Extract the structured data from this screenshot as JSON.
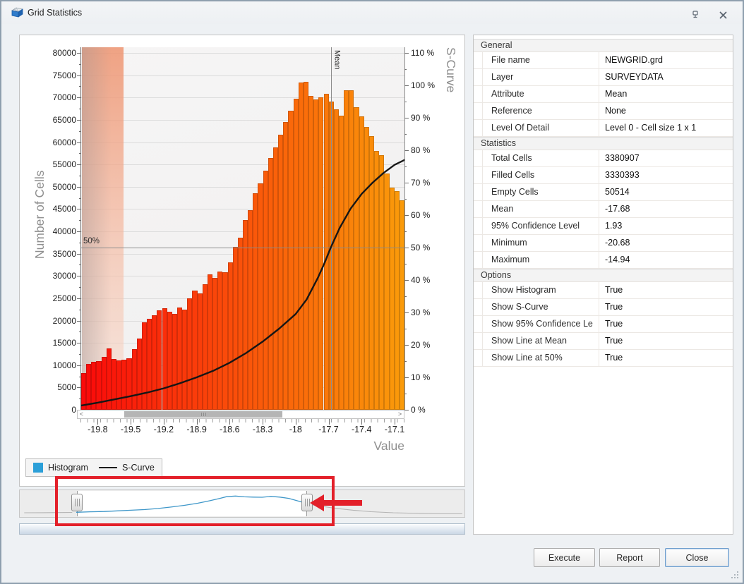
{
  "window": {
    "title": "Grid Statistics"
  },
  "chart_data": {
    "type": "bar",
    "title": "",
    "xlabel": "Value",
    "ylabel_left": "Number of Cells",
    "ylabel_right": "S-Curve",
    "x_range": [
      -19.95,
      -17.01
    ],
    "ylim_left": [
      0,
      80000
    ],
    "ylim_right_pct": [
      0,
      110
    ],
    "grid": "horizontal",
    "x_ticks": [
      "-19.8",
      "-19.5",
      "-19.2",
      "-18.9",
      "-18.6",
      "-18.3",
      "-18",
      "-17.7",
      "-17.4",
      "-17.1"
    ],
    "y_left_tick_step": 5000,
    "y_right_tick_step_pct": 10,
    "histogram": {
      "name": "Histogram",
      "bin_start": -19.95,
      "bin_count": 64,
      "values": [
        8200,
        10300,
        10800,
        10900,
        11800,
        13800,
        11400,
        11000,
        11300,
        11500,
        13600,
        16000,
        19600,
        20400,
        21200,
        22300,
        22800,
        22000,
        21500,
        23000,
        22400,
        25000,
        26800,
        26100,
        28200,
        30400,
        29600,
        31000,
        30800,
        33000,
        36500,
        38600,
        42600,
        44800,
        48600,
        50700,
        53600,
        56400,
        58800,
        61600,
        64500,
        67000,
        69700,
        73300,
        73500,
        70400,
        69600,
        70000,
        70800,
        69100,
        67400,
        66000,
        71700,
        71600,
        67900,
        65800,
        63400,
        61300,
        58100,
        57100,
        53000,
        49800,
        49000,
        47000
      ]
    },
    "s_curve": {
      "name": "S-Curve",
      "points_value_pct": [
        [
          -19.95,
          1.3
        ],
        [
          -19.8,
          2.2
        ],
        [
          -19.65,
          3.2
        ],
        [
          -19.5,
          4.2
        ],
        [
          -19.35,
          5.3
        ],
        [
          -19.2,
          6.6
        ],
        [
          -19.05,
          8.2
        ],
        [
          -18.9,
          10
        ],
        [
          -18.75,
          12
        ],
        [
          -18.6,
          14.5
        ],
        [
          -18.45,
          17.5
        ],
        [
          -18.3,
          21
        ],
        [
          -18.15,
          25
        ],
        [
          -18.0,
          29.5
        ],
        [
          -17.9,
          34
        ],
        [
          -17.8,
          40.5
        ],
        [
          -17.74,
          45
        ],
        [
          -17.68,
          50
        ],
        [
          -17.6,
          56
        ],
        [
          -17.5,
          62
        ],
        [
          -17.4,
          66.5
        ],
        [
          -17.3,
          70
        ],
        [
          -17.2,
          73
        ],
        [
          -17.1,
          75.5
        ],
        [
          -17.01,
          77
        ]
      ]
    },
    "annotations": {
      "mean_line": {
        "x": -17.68,
        "label": "Mean"
      },
      "fifty_line": {
        "pct": 50,
        "label": "50%"
      },
      "shaded_band": {
        "x_start": -19.95,
        "x_end": -19.57
      }
    },
    "legend": [
      {
        "label": "Histogram",
        "swatch": "square",
        "color": "#2b9fd8"
      },
      {
        "label": "S-Curve",
        "swatch": "line",
        "color": "#1a1a1a"
      }
    ],
    "scrollbar": {
      "thumb_start_frac": 0.125,
      "thumb_end_frac": 0.635
    }
  },
  "range_selector": {
    "selected_range_fraction": [
      0.127,
      0.645
    ],
    "profile_left_gray": [
      [
        0.01,
        0.1
      ],
      [
        0.05,
        0.105
      ],
      [
        0.09,
        0.11
      ],
      [
        0.118,
        0.118
      ]
    ],
    "profile_selected_blue": [
      [
        0.127,
        0.125
      ],
      [
        0.16,
        0.145
      ],
      [
        0.19,
        0.16
      ],
      [
        0.22,
        0.19
      ],
      [
        0.25,
        0.22
      ],
      [
        0.28,
        0.25
      ],
      [
        0.31,
        0.3
      ],
      [
        0.34,
        0.37
      ],
      [
        0.37,
        0.45
      ],
      [
        0.4,
        0.55
      ],
      [
        0.425,
        0.66
      ],
      [
        0.45,
        0.78
      ],
      [
        0.465,
        0.86
      ],
      [
        0.485,
        0.89
      ],
      [
        0.505,
        0.855
      ],
      [
        0.525,
        0.84
      ],
      [
        0.545,
        0.835
      ],
      [
        0.565,
        0.875
      ],
      [
        0.585,
        0.84
      ],
      [
        0.605,
        0.78
      ],
      [
        0.622,
        0.68
      ],
      [
        0.635,
        0.6
      ],
      [
        0.645,
        0.54
      ]
    ],
    "profile_right_gray": [
      [
        0.655,
        0.48
      ],
      [
        0.68,
        0.4
      ],
      [
        0.71,
        0.31
      ],
      [
        0.75,
        0.22
      ],
      [
        0.79,
        0.15
      ],
      [
        0.84,
        0.1
      ],
      [
        0.9,
        0.07
      ],
      [
        0.96,
        0.05
      ],
      [
        0.995,
        0.05
      ]
    ],
    "annotation_highlight_color": "#e3202a"
  },
  "property_grid": {
    "sections": [
      {
        "title": "General",
        "rows": [
          {
            "label": "File name",
            "value": "NEWGRID.grd"
          },
          {
            "label": "Layer",
            "value": "SURVEYDATA"
          },
          {
            "label": "Attribute",
            "value": "Mean"
          },
          {
            "label": "Reference",
            "value": "None"
          },
          {
            "label": "Level Of Detail",
            "value": "Level 0 - Cell size 1 x 1"
          }
        ]
      },
      {
        "title": "Statistics",
        "rows": [
          {
            "label": "Total Cells",
            "value": "3380907"
          },
          {
            "label": "Filled Cells",
            "value": "3330393"
          },
          {
            "label": "Empty Cells",
            "value": "50514"
          },
          {
            "label": "Mean",
            "value": "-17.68"
          },
          {
            "label": "95% Confidence Level",
            "value": "1.93"
          },
          {
            "label": "Minimum",
            "value": "-20.68"
          },
          {
            "label": "Maximum",
            "value": "-14.94"
          }
        ]
      },
      {
        "title": "Options",
        "rows": [
          {
            "label": "Show Histogram",
            "value": "True"
          },
          {
            "label": "Show S-Curve",
            "value": "True"
          },
          {
            "label": "Show 95% Confidence Le",
            "value": "True"
          },
          {
            "label": "Show Line at Mean",
            "value": "True"
          },
          {
            "label": "Show Line at 50%",
            "value": "True"
          }
        ]
      }
    ]
  },
  "footer": {
    "buttons": [
      {
        "label": "Execute"
      },
      {
        "label": "Report"
      },
      {
        "label": "Close",
        "focused": true
      }
    ]
  },
  "colors": {
    "bar_left": "#f50d0d",
    "bar_right": "#f9a113",
    "annotation_red": "#e3202a",
    "legend_blue": "#2b9fd8"
  }
}
